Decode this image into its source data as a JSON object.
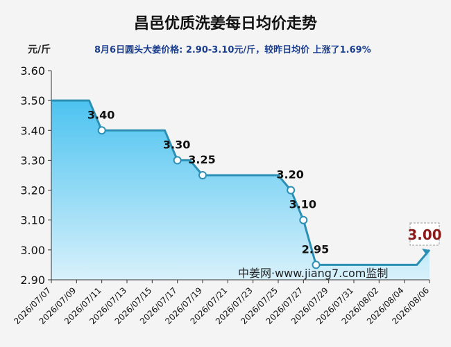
{
  "title": "昌邑优质洗姜每日均价走势",
  "unit_label": "元/斤",
  "subtitle": "8月6日圆头大姜价格: 2.90-3.10元/斤，较昨日均价 上涨了1.69%",
  "watermark": "中姜网·www.jiang7.com监制",
  "colors": {
    "line": "#2b8fb4",
    "fill_top": "#4cc3f0",
    "fill_bottom": "#d8f1fb",
    "highlight": "#8b1a1a"
  },
  "chart_data": {
    "type": "area",
    "x": [
      "2026/07/07",
      "2026/07/08",
      "2026/07/09",
      "2026/07/10",
      "2026/07/11",
      "2026/07/12",
      "2026/07/13",
      "2026/07/14",
      "2026/07/15",
      "2026/07/16",
      "2026/07/17",
      "2026/07/18",
      "2026/07/19",
      "2026/07/20",
      "2026/07/21",
      "2026/07/22",
      "2026/07/23",
      "2026/07/24",
      "2026/07/25",
      "2026/07/26",
      "2026/07/27",
      "2026/07/28",
      "2026/07/29",
      "2026/07/30",
      "2026/07/31",
      "2026/08/01",
      "2026/08/02",
      "2026/08/03",
      "2026/08/04",
      "2026/08/05",
      "2026/08/06"
    ],
    "values": [
      3.5,
      3.5,
      3.5,
      3.5,
      3.4,
      3.4,
      3.4,
      3.4,
      3.4,
      3.4,
      3.3,
      3.3,
      3.25,
      3.25,
      3.25,
      3.25,
      3.25,
      3.25,
      3.25,
      3.2,
      3.1,
      2.95,
      2.95,
      2.95,
      2.95,
      2.95,
      2.95,
      2.95,
      2.95,
      2.95,
      3.0
    ],
    "x_tick_labels": [
      "2026/07/07",
      "2026/07/09",
      "2026/07/11",
      "2026/07/13",
      "2026/07/15",
      "2026/07/17",
      "2026/07/19",
      "2026/07/21",
      "2026/07/23",
      "2026/07/25",
      "2026/07/27",
      "2026/07/29",
      "2026/07/31",
      "2026/08/02",
      "2026/08/04",
      "2026/08/06"
    ],
    "y_tick_labels": [
      "2.90",
      "3.00",
      "3.10",
      "3.20",
      "3.30",
      "3.40",
      "3.50",
      "3.60"
    ],
    "ylim": [
      2.9,
      3.6
    ],
    "annotations": [
      {
        "x": "2026/07/11",
        "label": "3.40"
      },
      {
        "x": "2026/07/17",
        "label": "3.30"
      },
      {
        "x": "2026/07/19",
        "label": "3.25"
      },
      {
        "x": "2026/07/26",
        "label": "3.20"
      },
      {
        "x": "2026/07/27",
        "label": "3.10"
      },
      {
        "x": "2026/07/28",
        "label": "2.95"
      }
    ],
    "latest": {
      "x": "2026/08/06",
      "label": "3.00"
    },
    "grid": false
  }
}
